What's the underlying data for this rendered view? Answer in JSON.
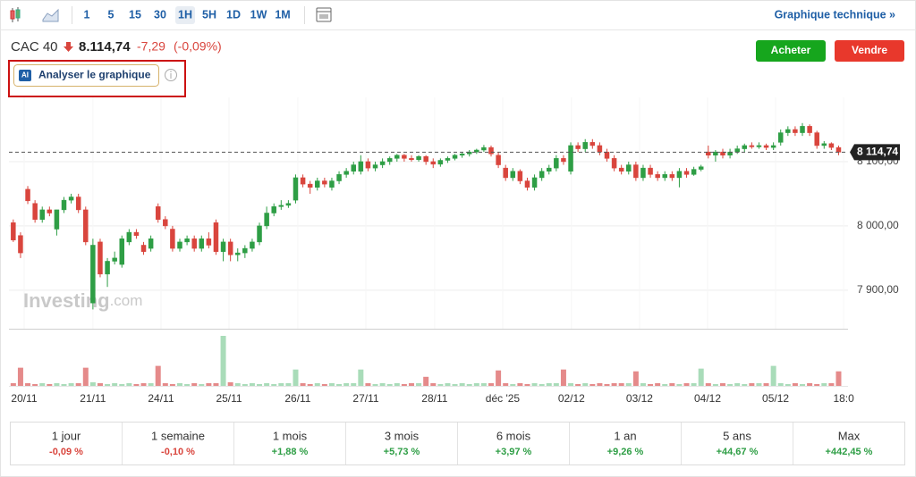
{
  "toolbar": {
    "intervals": [
      "1",
      "5",
      "15",
      "30",
      "1H",
      "5H",
      "1D",
      "1W",
      "1M"
    ],
    "selected": "1H",
    "link": "Graphique technique »"
  },
  "header": {
    "name": "CAC 40",
    "price": "8.114,74",
    "change": "-7,29",
    "change_pct": "(-0,09%)",
    "buy": "Acheter",
    "sell": "Vendre",
    "ai_badge": "AI",
    "ai_button": "Analyser le graphique"
  },
  "chart_data": {
    "type": "candlestick",
    "watermark": [
      "Investing",
      ".com"
    ],
    "ylim": [
      7840,
      8200
    ],
    "yticks": [
      {
        "value": 8100,
        "label": "8 100,00"
      },
      {
        "value": 8000,
        "label": "8 000,00"
      },
      {
        "value": 7900,
        "label": "7 900,00"
      }
    ],
    "last_price": {
      "value": 8114.74,
      "label": "8 114,74"
    },
    "xlim": [
      -0.6,
      115.3
    ],
    "xticks": [
      {
        "value": 1.5,
        "label": "20/11"
      },
      {
        "value": 11,
        "label": "21/11"
      },
      {
        "value": 20.4,
        "label": "24/11"
      },
      {
        "value": 29.8,
        "label": "25/11"
      },
      {
        "value": 39.3,
        "label": "26/11"
      },
      {
        "value": 48.7,
        "label": "27/11"
      },
      {
        "value": 58.2,
        "label": "28/11"
      },
      {
        "value": 67.6,
        "label": "déc '25"
      },
      {
        "value": 77.1,
        "label": "02/12"
      },
      {
        "value": 86.5,
        "label": "03/12"
      },
      {
        "value": 95.9,
        "label": "04/12"
      },
      {
        "value": 105.3,
        "label": "05/12"
      },
      {
        "value": 114.7,
        "label": "18:0"
      }
    ],
    "colors": {
      "up": "#2e9e45",
      "down": "#d9453d",
      "up_volume": "#a9dcb9",
      "down_volume": "#e58a8a",
      "grid": "#eeeeee"
    },
    "candles": [
      [
        8005,
        8010,
        7975,
        7978
      ],
      [
        7985,
        7990,
        7950,
        7958
      ],
      [
        8057,
        8062,
        8034,
        8039
      ],
      [
        8035,
        8040,
        8005,
        8010
      ],
      [
        8010,
        8030,
        8005,
        8025
      ],
      [
        8025,
        8030,
        8015,
        8020
      ],
      [
        7995,
        8025,
        7985,
        8025
      ],
      [
        8025,
        8045,
        8020,
        8040
      ],
      [
        8040,
        8050,
        8035,
        8045
      ],
      [
        8045,
        8050,
        8020,
        8025
      ],
      [
        8025,
        8030,
        7970,
        7975
      ],
      [
        7880,
        7980,
        7870,
        7970
      ],
      [
        7975,
        7980,
        7920,
        7925
      ],
      [
        7925,
        7950,
        7905,
        7945
      ],
      [
        7945,
        7960,
        7940,
        7950
      ],
      [
        7940,
        7985,
        7935,
        7980
      ],
      [
        7975,
        7995,
        7970,
        7990
      ],
      [
        7990,
        7995,
        7980,
        7985
      ],
      [
        7970,
        7975,
        7955,
        7960
      ],
      [
        7965,
        7985,
        7960,
        7980
      ],
      [
        8030,
        8035,
        8005,
        8010
      ],
      [
        8010,
        8015,
        7995,
        8000
      ],
      [
        7995,
        8000,
        7960,
        7965
      ],
      [
        7965,
        7980,
        7960,
        7975
      ],
      [
        7975,
        7985,
        7970,
        7980
      ],
      [
        7980,
        7985,
        7960,
        7965
      ],
      [
        7965,
        7985,
        7960,
        7980
      ],
      [
        7980,
        7990,
        7965,
        7970
      ],
      [
        8005,
        8010,
        7955,
        7960
      ],
      [
        7960,
        7980,
        7945,
        7975
      ],
      [
        7975,
        7980,
        7945,
        7955
      ],
      [
        7955,
        7965,
        7945,
        7958
      ],
      [
        7958,
        7970,
        7950,
        7965
      ],
      [
        7965,
        7980,
        7960,
        7975
      ],
      [
        7975,
        8005,
        7970,
        8000
      ],
      [
        8000,
        8030,
        7995,
        8020
      ],
      [
        8020,
        8035,
        8015,
        8030
      ],
      [
        8030,
        8040,
        8025,
        8032
      ],
      [
        8032,
        8040,
        8028,
        8035
      ],
      [
        8040,
        8080,
        8035,
        8075
      ],
      [
        8075,
        8080,
        8060,
        8065
      ],
      [
        8065,
        8070,
        8050,
        8060
      ],
      [
        8060,
        8075,
        8055,
        8070
      ],
      [
        8070,
        8075,
        8060,
        8065
      ],
      [
        8060,
        8075,
        8055,
        8070
      ],
      [
        8070,
        8085,
        8065,
        8080
      ],
      [
        8080,
        8090,
        8075,
        8085
      ],
      [
        8085,
        8100,
        8080,
        8095
      ],
      [
        8085,
        8110,
        8080,
        8100
      ],
      [
        8100,
        8105,
        8085,
        8090
      ],
      [
        8090,
        8100,
        8085,
        8095
      ],
      [
        8095,
        8105,
        8090,
        8100
      ],
      [
        8100,
        8108,
        8095,
        8105
      ],
      [
        8105,
        8112,
        8100,
        8110
      ],
      [
        8110,
        8112,
        8100,
        8105
      ],
      [
        8105,
        8110,
        8100,
        8103
      ],
      [
        8103,
        8110,
        8100,
        8108
      ],
      [
        8108,
        8110,
        8095,
        8100
      ],
      [
        8100,
        8105,
        8090,
        8096
      ],
      [
        8096,
        8105,
        8092,
        8102
      ],
      [
        8102,
        8108,
        8098,
        8105
      ],
      [
        8105,
        8112,
        8102,
        8110
      ],
      [
        8110,
        8115,
        8106,
        8112
      ],
      [
        8112,
        8118,
        8108,
        8115
      ],
      [
        8115,
        8120,
        8112,
        8118
      ],
      [
        8118,
        8126,
        8115,
        8122
      ],
      [
        8122,
        8125,
        8108,
        8112
      ],
      [
        8110,
        8115,
        8090,
        8095
      ],
      [
        8090,
        8095,
        8070,
        8075
      ],
      [
        8075,
        8090,
        8070,
        8085
      ],
      [
        8085,
        8088,
        8065,
        8070
      ],
      [
        8070,
        8075,
        8055,
        8060
      ],
      [
        8060,
        8080,
        8055,
        8075
      ],
      [
        8075,
        8090,
        8070,
        8085
      ],
      [
        8085,
        8095,
        8080,
        8090
      ],
      [
        8090,
        8110,
        8085,
        8105
      ],
      [
        8105,
        8110,
        8095,
        8100
      ],
      [
        8085,
        8130,
        8080,
        8125
      ],
      [
        8125,
        8130,
        8115,
        8120
      ],
      [
        8120,
        8135,
        8115,
        8130
      ],
      [
        8130,
        8135,
        8120,
        8125
      ],
      [
        8125,
        8130,
        8110,
        8115
      ],
      [
        8115,
        8120,
        8100,
        8105
      ],
      [
        8105,
        8110,
        8085,
        8090
      ],
      [
        8090,
        8095,
        8080,
        8085
      ],
      [
        8085,
        8100,
        8080,
        8095
      ],
      [
        8095,
        8100,
        8070,
        8075
      ],
      [
        8075,
        8095,
        8070,
        8090
      ],
      [
        8090,
        8095,
        8075,
        8080
      ],
      [
        8080,
        8085,
        8070,
        8075
      ],
      [
        8075,
        8085,
        8070,
        8080
      ],
      [
        8080,
        8085,
        8070,
        8075
      ],
      [
        8075,
        8090,
        8060,
        8085
      ],
      [
        8085,
        8090,
        8075,
        8080
      ],
      [
        8080,
        8092,
        8078,
        8088
      ],
      [
        8088,
        8095,
        8085,
        8092
      ],
      [
        8115,
        8125,
        8105,
        8110
      ],
      [
        8110,
        8118,
        8100,
        8115
      ],
      [
        8115,
        8120,
        8105,
        8110
      ],
      [
        8110,
        8120,
        8105,
        8115
      ],
      [
        8115,
        8125,
        8112,
        8120
      ],
      [
        8120,
        8128,
        8115,
        8125
      ],
      [
        8125,
        8130,
        8120,
        8123
      ],
      [
        8123,
        8130,
        8120,
        8125
      ],
      [
        8125,
        8128,
        8118,
        8122
      ],
      [
        8122,
        8130,
        8118,
        8125
      ],
      [
        8130,
        8150,
        8125,
        8145
      ],
      [
        8145,
        8155,
        8140,
        8150
      ],
      [
        8150,
        8155,
        8140,
        8145
      ],
      [
        8145,
        8160,
        8140,
        8155
      ],
      [
        8155,
        8158,
        8140,
        8145
      ],
      [
        8145,
        8148,
        8120,
        8125
      ],
      [
        8125,
        8132,
        8120,
        8128
      ],
      [
        8128,
        8130,
        8118,
        8122
      ],
      [
        8122,
        8125,
        8110,
        8114.74
      ]
    ],
    "volumes": [
      3,
      20,
      3,
      2,
      3,
      2,
      3,
      2,
      3,
      3,
      20,
      4,
      3,
      2,
      3,
      2,
      3,
      2,
      3,
      3,
      22,
      3,
      2,
      3,
      2,
      3,
      2,
      3,
      3,
      55,
      4,
      3,
      2,
      3,
      2,
      3,
      2,
      3,
      3,
      18,
      3,
      2,
      3,
      2,
      3,
      2,
      3,
      3,
      18,
      3,
      2,
      3,
      2,
      3,
      2,
      3,
      3,
      10,
      3,
      2,
      3,
      2,
      3,
      2,
      3,
      3,
      3,
      17,
      3,
      2,
      3,
      2,
      3,
      2,
      3,
      3,
      18,
      3,
      2,
      3,
      2,
      3,
      2,
      3,
      3,
      3,
      16,
      3,
      2,
      3,
      2,
      3,
      2,
      3,
      3,
      19,
      3,
      2,
      3,
      2,
      3,
      2,
      3,
      3,
      3,
      22,
      3,
      2,
      3,
      2,
      3,
      2,
      3,
      3,
      16
    ]
  },
  "periods": [
    {
      "label": "1 jour",
      "change": "-0,09 %"
    },
    {
      "label": "1 semaine",
      "change": "-0,10 %"
    },
    {
      "label": "1 mois",
      "change": "+1,88 %"
    },
    {
      "label": "3 mois",
      "change": "+5,73 %"
    },
    {
      "label": "6 mois",
      "change": "+3,97 %"
    },
    {
      "label": "1 an",
      "change": "+9,26 %"
    },
    {
      "label": "5 ans",
      "change": "+44,67 %"
    },
    {
      "label": "Max",
      "change": "+442,45 %"
    }
  ]
}
